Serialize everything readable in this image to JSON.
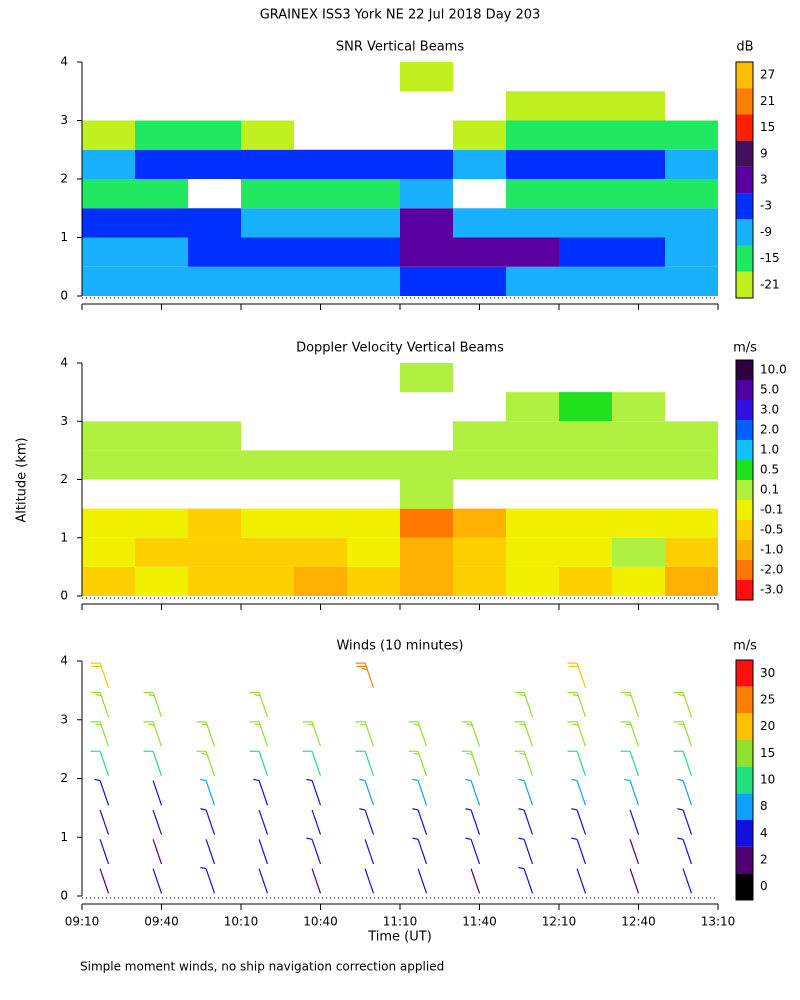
{
  "title": "GRAINEX ISS3 York NE  22 Jul 2018 Day 203",
  "y_label": "Altitude (km)",
  "x_label": "Time (UT)",
  "footnote": "Simple moment winds, no ship navigation correction applied",
  "chart_data": [
    {
      "type": "heatmap",
      "title": "SNR Vertical Beams",
      "unit": "dB",
      "x": [
        10,
        30,
        50,
        70,
        90,
        110,
        130,
        150,
        170,
        190,
        210,
        230
      ],
      "y": [
        0.25,
        0.75,
        1.25,
        1.75,
        2.25,
        2.75,
        3.25,
        3.75
      ],
      "values": [
        [
          -12,
          -12,
          -12,
          -10,
          -10,
          -9,
          -6,
          -6,
          -8,
          -10,
          -10,
          -12
        ],
        [
          -9,
          -9,
          -6,
          -4,
          -4,
          -3,
          3,
          4,
          4,
          -2,
          -4,
          -8
        ],
        [
          -3,
          -4,
          -6,
          -10,
          -10,
          -8,
          3,
          -8,
          -10,
          -12,
          -12,
          -12
        ],
        [
          -18,
          -18,
          null,
          -18,
          -18,
          -15,
          -12,
          null,
          -18,
          -18,
          -15,
          -15
        ],
        [
          -9,
          -6,
          -6,
          -3,
          -3,
          -6,
          -6,
          -9,
          -6,
          -6,
          -3,
          -9
        ],
        [
          -21,
          -18,
          -18,
          -21,
          null,
          null,
          null,
          -21,
          -18,
          -18,
          -15,
          -18
        ],
        [
          null,
          null,
          null,
          null,
          null,
          null,
          null,
          null,
          -21,
          -21,
          -21,
          null
        ],
        [
          null,
          null,
          null,
          null,
          null,
          null,
          -21,
          null,
          null,
          null,
          null,
          null
        ]
      ],
      "xlim": [
        0,
        240
      ],
      "xticks": [
        0,
        30,
        60,
        90,
        120,
        150,
        180,
        210,
        240
      ],
      "ylim": [
        0,
        4
      ],
      "yticks": [
        0,
        1,
        2,
        3,
        4
      ],
      "levels": [
        27,
        21,
        15,
        9,
        3,
        -3,
        -9,
        -15,
        -21
      ],
      "colors": [
        "#ffbf00",
        "#ff7f00",
        "#ff2000",
        "#40105f",
        "#5a00a0",
        "#0030ff",
        "#18b0ff",
        "#20e860",
        "#c0f020"
      ]
    },
    {
      "type": "heatmap",
      "title": "Doppler Velocity Vertical Beams",
      "unit": "m/s",
      "x": [
        10,
        30,
        50,
        70,
        90,
        110,
        130,
        150,
        170,
        190,
        210,
        230
      ],
      "y": [
        0.25,
        0.75,
        1.25,
        1.75,
        2.25,
        2.75,
        3.25,
        3.75
      ],
      "values": [
        [
          -0.5,
          -0.3,
          -0.5,
          -0.5,
          -1.0,
          -0.5,
          -1.0,
          -0.5,
          -0.3,
          -0.5,
          -0.3,
          -1.0
        ],
        [
          -0.3,
          -0.5,
          -0.5,
          -0.5,
          -0.5,
          -0.3,
          -1.0,
          -0.5,
          -0.3,
          -0.3,
          0.0,
          -0.5
        ],
        [
          -0.3,
          -0.1,
          -0.5,
          -0.3,
          -0.1,
          -0.3,
          -2.0,
          -1.0,
          -0.3,
          -0.1,
          -0.3,
          -0.3
        ],
        [
          null,
          null,
          null,
          null,
          null,
          null,
          0.1,
          null,
          null,
          null,
          null,
          null
        ],
        [
          0.1,
          0.1,
          0.3,
          0.1,
          0.1,
          0.3,
          0.1,
          0.1,
          0.3,
          0.1,
          0.1,
          0.1
        ],
        [
          0.3,
          0.1,
          0.1,
          null,
          null,
          null,
          null,
          0.1,
          0.3,
          0.1,
          0.3,
          0.1
        ],
        [
          null,
          null,
          null,
          null,
          null,
          null,
          null,
          null,
          0.3,
          0.5,
          0.3,
          null
        ],
        [
          null,
          null,
          null,
          null,
          null,
          null,
          0.1,
          null,
          null,
          null,
          null,
          null
        ]
      ],
      "xlim": [
        0,
        240
      ],
      "xticks": [
        0,
        30,
        60,
        90,
        120,
        150,
        180,
        210,
        240
      ],
      "ylim": [
        0,
        4
      ],
      "yticks": [
        0,
        1,
        2,
        3,
        4
      ],
      "levels": [
        {
          "value": 10,
          "label": "10.0"
        },
        {
          "value": 5,
          "label": "5.0"
        },
        {
          "value": 3,
          "label": "3.0"
        },
        {
          "value": 2,
          "label": "2.0"
        },
        {
          "value": 1,
          "label": "1.0"
        },
        0.5,
        0.1,
        -0.1,
        -0.5,
        {
          "value": -1,
          "label": "-1.0"
        },
        {
          "value": -2,
          "label": "-2.0"
        },
        {
          "value": -3,
          "label": "-3.0"
        }
      ],
      "colors": [
        "#300040",
        "#5000a0",
        "#3010e0",
        "#0060ff",
        "#10c0ff",
        "#20e020",
        "#b0f040",
        "#f0f000",
        "#ffd000",
        "#ffb000",
        "#ff7800",
        "#ff1010"
      ]
    },
    {
      "type": "barbs",
      "title": "Winds (10 minutes)",
      "unit": "m/s",
      "x": [
        10,
        30,
        50,
        70,
        90,
        110,
        130,
        150,
        170,
        190,
        210,
        230
      ],
      "y": [
        0.25,
        0.75,
        1.25,
        1.75,
        2.25,
        2.75,
        3.25,
        3.75
      ],
      "values": [
        [
          3,
          4,
          5,
          4,
          3,
          4,
          4,
          3,
          5,
          4,
          3,
          4
        ],
        [
          4,
          3,
          4,
          4,
          5,
          4,
          5,
          6,
          6,
          5,
          3,
          5
        ],
        [
          3,
          4,
          5,
          4,
          4,
          5,
          5,
          6,
          7,
          6,
          4,
          5
        ],
        [
          5,
          4,
          8,
          7,
          6,
          8,
          8,
          9,
          9,
          9,
          8,
          8
        ],
        [
          12,
          12,
          15,
          12,
          14,
          14,
          15,
          15,
          16,
          14,
          12,
          14
        ],
        [
          16,
          15,
          17,
          16,
          16,
          16,
          16,
          16,
          17,
          16,
          15,
          17
        ],
        [
          17,
          16,
          null,
          18,
          null,
          null,
          null,
          null,
          17,
          16,
          17,
          16
        ],
        [
          22,
          null,
          null,
          null,
          null,
          28,
          null,
          null,
          null,
          22,
          null,
          null
        ]
      ],
      "xlim": [
        0,
        240
      ],
      "xticks": [
        {
          "value": 0,
          "label": "09:10"
        },
        {
          "value": 30,
          "label": "09:40"
        },
        {
          "value": 60,
          "label": "10:10"
        },
        {
          "value": 90,
          "label": "10:40"
        },
        {
          "value": 120,
          "label": "11:10"
        },
        {
          "value": 150,
          "label": "11:40"
        },
        {
          "value": 180,
          "label": "12:10"
        },
        {
          "value": 210,
          "label": "12:40"
        },
        {
          "value": 240,
          "label": "13:10"
        }
      ],
      "ylim": [
        0,
        4
      ],
      "yticks": [
        0,
        1,
        2,
        3,
        4
      ],
      "levels": [
        30,
        25,
        20,
        15,
        10,
        8,
        4,
        2,
        0
      ],
      "colors": [
        "#ff1010",
        "#ff8000",
        "#ffc000",
        "#90e030",
        "#20e080",
        "#10a0ff",
        "#1010e0",
        "#500070",
        "#000000"
      ]
    }
  ]
}
